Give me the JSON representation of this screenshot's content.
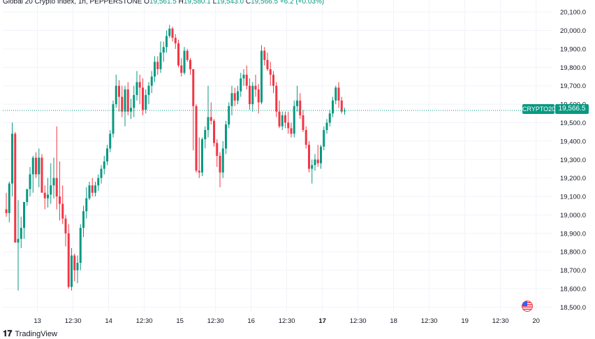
{
  "header": {
    "title": "Global 20 Crypto Index, 1h, PEPPERSTONE",
    "o_label": "O",
    "o_value": "19,561.5",
    "h_label": "H",
    "h_value": "19,580.1",
    "l_label": "L",
    "l_value": "19,543.0",
    "c_label": "C",
    "c_value": "19,566.5",
    "change": "+6.2 (+0.03%)"
  },
  "current": {
    "symbol": "CRYPTO20",
    "price_text": "19,566.5",
    "price": 19566.5
  },
  "brand": {
    "name": "TradingView",
    "logo_icon": "tradingview-logo-icon"
  },
  "colors": {
    "up": "#089981",
    "down": "#f23645",
    "grid": "#f0f3fa",
    "text": "#131722"
  },
  "chart_data": {
    "type": "candlestick",
    "y_ticks": [
      "20,100.0",
      "20,000.0",
      "19,900.0",
      "19,800.0",
      "19,700.0",
      "19,600.0",
      "19,500.0",
      "19,400.0",
      "19,300.0",
      "19,200.0",
      "19,100.0",
      "19,000.0",
      "18,900.0",
      "18,800.0",
      "18,700.0",
      "18,600.0",
      "18,500.0"
    ],
    "y_tick_values": [
      20100,
      20000,
      19900,
      19800,
      19700,
      19600,
      19500,
      19400,
      19300,
      19200,
      19100,
      19000,
      18900,
      18800,
      18700,
      18600,
      18500
    ],
    "ylim": [
      18475,
      20165
    ],
    "x_ticks": [
      {
        "label": "13",
        "bold": false,
        "bar": 10.5
      },
      {
        "label": "12:30",
        "bold": false,
        "bar": 22.5
      },
      {
        "label": "14",
        "bold": false,
        "bar": 34.5
      },
      {
        "label": "12:30",
        "bold": false,
        "bar": 46.5
      },
      {
        "label": "15",
        "bold": false,
        "bar": 58.5
      },
      {
        "label": "12:30",
        "bold": false,
        "bar": 70.5
      },
      {
        "label": "16",
        "bold": false,
        "bar": 82.5
      },
      {
        "label": "12:30",
        "bold": false,
        "bar": 94.5
      },
      {
        "label": "17",
        "bold": true,
        "bar": 106.5
      },
      {
        "label": "12:30",
        "bold": false,
        "bar": 118.5
      },
      {
        "label": "18",
        "bold": false,
        "bar": 130.5
      },
      {
        "label": "12:30",
        "bold": false,
        "bar": 142.5
      },
      {
        "label": "19",
        "bold": false,
        "bar": 154.5
      },
      {
        "label": "12:30",
        "bold": false,
        "bar": 166.5
      },
      {
        "label": "20",
        "bold": false,
        "bar": 178.5
      }
    ],
    "bars": [
      [
        19030,
        19120,
        18990,
        19010
      ],
      [
        19010,
        19180,
        18960,
        19170
      ],
      [
        19170,
        19500,
        19100,
        19440
      ],
      [
        19440,
        19450,
        18850,
        18850
      ],
      [
        18850,
        19080,
        18590,
        18870
      ],
      [
        18870,
        18990,
        18820,
        18930
      ],
      [
        18930,
        19050,
        18870,
        19070
      ],
      [
        19070,
        19140,
        19050,
        19140
      ],
      [
        19140,
        19260,
        19100,
        19220
      ],
      [
        19220,
        19320,
        19120,
        19310
      ],
      [
        19310,
        19340,
        19200,
        19220
      ],
      [
        19220,
        19360,
        19150,
        19310
      ],
      [
        19310,
        19330,
        19150,
        19120
      ],
      [
        19120,
        19160,
        19030,
        19090
      ],
      [
        19090,
        19200,
        19040,
        19110
      ],
      [
        19110,
        19280,
        19060,
        19160
      ],
      [
        19160,
        19310,
        19090,
        19200
      ],
      [
        19200,
        19480,
        19030,
        19100
      ],
      [
        19100,
        19290,
        18970,
        19060
      ],
      [
        19060,
        19160,
        18950,
        18980
      ],
      [
        18980,
        19000,
        18830,
        18900
      ],
      [
        18900,
        18950,
        18600,
        18610
      ],
      [
        18610,
        18820,
        18590,
        18780
      ],
      [
        18780,
        18790,
        18640,
        18700
      ],
      [
        18700,
        18780,
        18630,
        18740
      ],
      [
        18740,
        18950,
        18700,
        18930
      ],
      [
        18930,
        19050,
        18880,
        19020
      ],
      [
        19020,
        19150,
        18980,
        19090
      ],
      [
        19090,
        19180,
        19080,
        19160
      ],
      [
        19160,
        19200,
        19100,
        19120
      ],
      [
        19120,
        19180,
        19100,
        19160
      ],
      [
        19160,
        19220,
        19130,
        19200
      ],
      [
        19200,
        19270,
        19170,
        19250
      ],
      [
        19250,
        19320,
        19220,
        19290
      ],
      [
        19290,
        19380,
        19270,
        19360
      ],
      [
        19360,
        19460,
        19340,
        19440
      ],
      [
        19440,
        19620,
        19420,
        19600
      ],
      [
        19600,
        19760,
        19580,
        19700
      ],
      [
        19700,
        19730,
        19560,
        19640
      ],
      [
        19640,
        19700,
        19530,
        19560
      ],
      [
        19560,
        19700,
        19480,
        19680
      ],
      [
        19680,
        19720,
        19540,
        19560
      ],
      [
        19560,
        19630,
        19520,
        19580
      ],
      [
        19580,
        19700,
        19530,
        19650
      ],
      [
        19650,
        19780,
        19620,
        19720
      ],
      [
        19720,
        19760,
        19600,
        19690
      ],
      [
        19690,
        19740,
        19540,
        19570
      ],
      [
        19570,
        19680,
        19550,
        19650
      ],
      [
        19650,
        19720,
        19600,
        19700
      ],
      [
        19700,
        19780,
        19660,
        19750
      ],
      [
        19750,
        19860,
        19720,
        19830
      ],
      [
        19830,
        19860,
        19760,
        19790
      ],
      [
        19790,
        19940,
        19770,
        19880
      ],
      [
        19880,
        19940,
        19830,
        19910
      ],
      [
        19910,
        20000,
        19880,
        19970
      ],
      [
        19970,
        20030,
        19960,
        20010
      ],
      [
        20010,
        20020,
        19940,
        19960
      ],
      [
        19960,
        19980,
        19900,
        19930
      ],
      [
        19930,
        19950,
        19800,
        19810
      ],
      [
        19810,
        19850,
        19750,
        19770
      ],
      [
        19770,
        19910,
        19760,
        19890
      ],
      [
        19890,
        19900,
        19830,
        19840
      ],
      [
        19840,
        19850,
        19760,
        19790
      ],
      [
        19790,
        19680,
        19350,
        19590
      ],
      [
        19590,
        19600,
        19230,
        19240
      ],
      [
        19240,
        19420,
        19200,
        19230
      ],
      [
        19230,
        19420,
        19210,
        19410
      ],
      [
        19410,
        19480,
        19360,
        19460
      ],
      [
        19460,
        19700,
        19420,
        19530
      ],
      [
        19530,
        19610,
        19490,
        19510
      ],
      [
        19510,
        19520,
        19370,
        19390
      ],
      [
        19390,
        19410,
        19260,
        19320
      ],
      [
        19320,
        19340,
        19150,
        19230
      ],
      [
        19230,
        19400,
        19200,
        19360
      ],
      [
        19360,
        19510,
        19330,
        19490
      ],
      [
        19490,
        19610,
        19470,
        19590
      ],
      [
        19590,
        19700,
        19540,
        19660
      ],
      [
        19660,
        19690,
        19590,
        19620
      ],
      [
        19620,
        19700,
        19600,
        19670
      ],
      [
        19670,
        19770,
        19640,
        19740
      ],
      [
        19740,
        19790,
        19700,
        19760
      ],
      [
        19760,
        19810,
        19680,
        19700
      ],
      [
        19700,
        19740,
        19570,
        19600
      ],
      [
        19600,
        19720,
        19560,
        19700
      ],
      [
        19700,
        19760,
        19640,
        19680
      ],
      [
        19680,
        19710,
        19550,
        19610
      ],
      [
        19610,
        19920,
        19600,
        19890
      ],
      [
        19890,
        19910,
        19810,
        19840
      ],
      [
        19840,
        19880,
        19780,
        19790
      ],
      [
        19790,
        19830,
        19700,
        19760
      ],
      [
        19760,
        19780,
        19660,
        19700
      ],
      [
        19700,
        19720,
        19530,
        19560
      ],
      [
        19560,
        19620,
        19470,
        19480
      ],
      [
        19480,
        19560,
        19460,
        19540
      ],
      [
        19540,
        19560,
        19470,
        19500
      ],
      [
        19500,
        19560,
        19440,
        19470
      ],
      [
        19470,
        19500,
        19420,
        19440
      ],
      [
        19440,
        19620,
        19420,
        19590
      ],
      [
        19590,
        19700,
        19560,
        19620
      ],
      [
        19620,
        19660,
        19520,
        19540
      ],
      [
        19540,
        19570,
        19450,
        19460
      ],
      [
        19460,
        19480,
        19360,
        19380
      ],
      [
        19380,
        19400,
        19230,
        19250
      ],
      [
        19250,
        19300,
        19170,
        19270
      ],
      [
        19270,
        19330,
        19240,
        19300
      ],
      [
        19300,
        19380,
        19260,
        19280
      ],
      [
        19280,
        19380,
        19250,
        19370
      ],
      [
        19370,
        19480,
        19350,
        19460
      ],
      [
        19460,
        19520,
        19440,
        19500
      ],
      [
        19500,
        19570,
        19480,
        19550
      ],
      [
        19550,
        19640,
        19530,
        19620
      ],
      [
        19620,
        19700,
        19600,
        19690
      ],
      [
        19690,
        19720,
        19580,
        19620
      ],
      [
        19620,
        19640,
        19550,
        19560
      ],
      [
        19561.5,
        19580.1,
        19543.0,
        19566.5
      ]
    ]
  }
}
